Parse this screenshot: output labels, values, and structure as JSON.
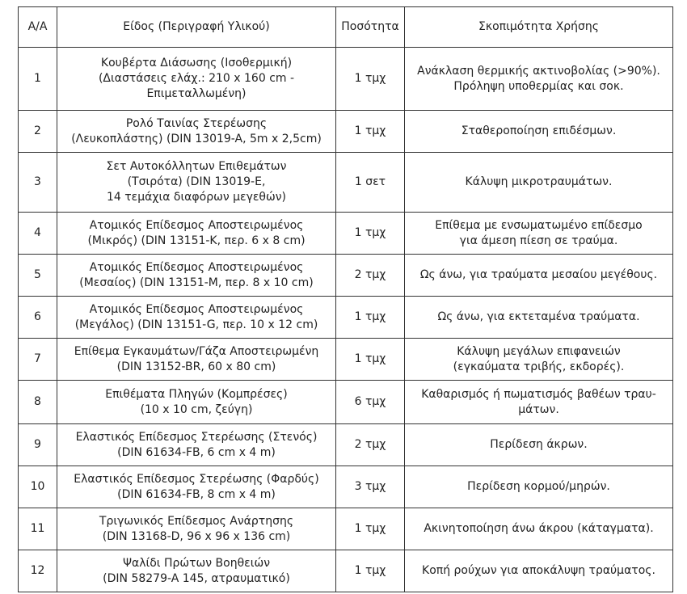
{
  "table": {
    "header": [
      [
        "Α/Α"
      ],
      [
        "Είδος (Περιγραφή Υλικού)"
      ],
      [
        "Ποσότητα"
      ],
      [
        "Σκοπιμότητα Χρήσης"
      ]
    ],
    "rows": [
      [
        [
          "1"
        ],
        [
          "Κουβέρτα Διάσωσης (Ισοθερμική)",
          "(Διαστάσεις ελάχ.: 210 x 160 cm -",
          "Επιμεταλλωμένη)"
        ],
        [
          "1 τμχ"
        ],
        [
          "Ανάκλαση θερμικής ακτινοβολίας (>90%).",
          "Πρόληψη υποθερμίας και σοκ."
        ]
      ],
      [
        [
          "2"
        ],
        [
          "Ρολό Ταινίας Στερέωσης",
          "(Λευκοπλάστης) (DIN 13019-A, 5m x 2,5cm)"
        ],
        [
          "1 τμχ"
        ],
        [
          "Σταθεροποίηση επιδέσμων."
        ]
      ],
      [
        [
          "3"
        ],
        [
          "Σετ Αυτοκόλλητων Επιθεμάτων",
          "(Τσιρότα) (DIN 13019-E,",
          "14 τεμάχια διαφόρων μεγεθών)"
        ],
        [
          "1 σετ"
        ],
        [
          "Κάλυψη μικροτραυμάτων."
        ]
      ],
      [
        [
          "4"
        ],
        [
          "Ατομικός Επίδεσμος Αποστειρωμένος",
          "(Μικρός) (DIN 13151-K, περ. 6 x 8 cm)"
        ],
        [
          "1 τμχ"
        ],
        [
          "Επίθεμα με ενσωματωμένο επίδεσμο",
          "για άμεση πίεση σε τραύμα."
        ]
      ],
      [
        [
          "5"
        ],
        [
          "Ατομικός Επίδεσμος Αποστειρωμένος",
          "(Μεσαίος) (DIN 13151-M, περ. 8 x 10 cm)"
        ],
        [
          "2 τμχ"
        ],
        [
          "Ως άνω, για τραύματα μεσαίου μεγέθους."
        ]
      ],
      [
        [
          "6"
        ],
        [
          "Ατομικός Επίδεσμος Αποστειρωμένος",
          "(Μεγάλος) (DIN 13151-G, περ. 10 x 12 cm)"
        ],
        [
          "1 τμχ"
        ],
        [
          "Ως άνω, για εκτεταμένα τραύματα."
        ]
      ],
      [
        [
          "7"
        ],
        [
          "Επίθεμα Εγκαυμάτων/Γάζα Αποστειρωμένη",
          "(DIN 13152-BR, 60 x 80 cm)"
        ],
        [
          "1 τμχ"
        ],
        [
          "Κάλυψη μεγάλων επιφανειών",
          "(εγκαύματα τριβής, εκδορές)."
        ]
      ],
      [
        [
          "8"
        ],
        [
          "Επιθέματα Πληγών (Κομπρέσες)",
          "(10 x 10 cm, ζεύγη)"
        ],
        [
          "6 τμχ"
        ],
        [
          "Καθαρισμός ή πωματισμός βαθέων τραυ-",
          "μάτων."
        ]
      ],
      [
        [
          "9"
        ],
        [
          "Ελαστικός Επίδεσμος Στερέωσης (Στενός)",
          "(DIN 61634-FB, 6 cm x 4 m)"
        ],
        [
          "2 τμχ"
        ],
        [
          "Περίδεση άκρων."
        ]
      ],
      [
        [
          "10"
        ],
        [
          "Ελαστικός Επίδεσμος Στερέωσης (Φαρδύς)",
          "(DIN 61634-FB, 8 cm x 4 m)"
        ],
        [
          "3 τμχ"
        ],
        [
          "Περίδεση κορμού/μηρών."
        ]
      ],
      [
        [
          "11"
        ],
        [
          "Τριγωνικός Επίδεσμος Ανάρτησης",
          "(DIN 13168-D, 96 x 96 x 136 cm)"
        ],
        [
          "1 τμχ"
        ],
        [
          "Ακινητοποίηση άνω άκρου (κάταγματα)."
        ]
      ],
      [
        [
          "12"
        ],
        [
          "Ψαλίδι Πρώτων Βοηθειών",
          "(DIN 58279-A 145, ατραυματικό)"
        ],
        [
          "1 τμχ"
        ],
        [
          "Κοπή ρούχων για αποκάλυψη τραύματος."
        ]
      ]
    ]
  }
}
